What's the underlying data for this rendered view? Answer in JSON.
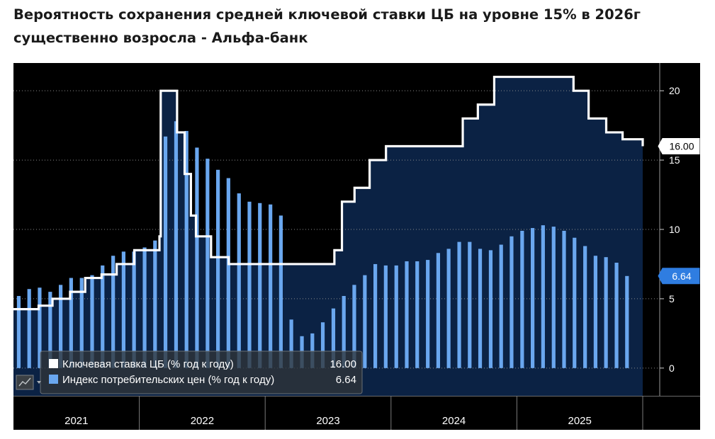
{
  "headline": "Вероятность сохранения средней ключевой ставки ЦБ на уровне 15% в 2026г существенно возросла - Альфа-банк",
  "chart_data": {
    "type": "bar+line",
    "title": "Вероятность сохранения средней ключевой ставки ЦБ на уровне 15% в 2026г существенно возросла - Альфа-банк",
    "ylim": [
      -2,
      22
    ],
    "yticks": [
      0,
      5,
      10,
      15,
      20
    ],
    "xlim": [
      2021.0,
      2026.0
    ],
    "year_labels": [
      "2021",
      "2022",
      "2023",
      "2024",
      "2025"
    ],
    "grid": true,
    "series": [
      {
        "name": "Ключевая ставка ЦБ (% год к году)",
        "kind": "step-line",
        "color": "#ffffff",
        "last_value": "16.00",
        "steps": [
          {
            "x": 2021.0,
            "y": 4.25
          },
          {
            "x": 2021.2,
            "y": 4.5
          },
          {
            "x": 2021.31,
            "y": 5.0
          },
          {
            "x": 2021.45,
            "y": 5.5
          },
          {
            "x": 2021.57,
            "y": 6.5
          },
          {
            "x": 2021.7,
            "y": 6.75
          },
          {
            "x": 2021.82,
            "y": 7.5
          },
          {
            "x": 2021.96,
            "y": 8.5
          },
          {
            "x": 2022.16,
            "y": 9.5
          },
          {
            "x": 2022.17,
            "y": 20.0
          },
          {
            "x": 2022.3,
            "y": 17.0
          },
          {
            "x": 2022.36,
            "y": 14.0
          },
          {
            "x": 2022.41,
            "y": 11.0
          },
          {
            "x": 2022.45,
            "y": 9.5
          },
          {
            "x": 2022.57,
            "y": 8.0
          },
          {
            "x": 2022.71,
            "y": 7.5
          },
          {
            "x": 2023.55,
            "y": 8.5
          },
          {
            "x": 2023.61,
            "y": 12.0
          },
          {
            "x": 2023.71,
            "y": 13.0
          },
          {
            "x": 2023.83,
            "y": 15.0
          },
          {
            "x": 2023.96,
            "y": 16.0
          },
          {
            "x": 2024.57,
            "y": 18.0
          },
          {
            "x": 2024.69,
            "y": 19.0
          },
          {
            "x": 2024.82,
            "y": 21.0
          },
          {
            "x": 2025.45,
            "y": 20.0
          },
          {
            "x": 2025.57,
            "y": 18.0
          },
          {
            "x": 2025.71,
            "y": 17.0
          },
          {
            "x": 2025.84,
            "y": 16.5
          },
          {
            "x": 2026.0,
            "y": 16.0
          }
        ]
      },
      {
        "name": "Индекс потребительских цен (% год к году)",
        "kind": "bar",
        "color": "#6aa7ef",
        "last_value": "6.64",
        "x": [
          2021.042,
          2021.125,
          2021.208,
          2021.292,
          2021.375,
          2021.458,
          2021.542,
          2021.625,
          2021.708,
          2021.792,
          2021.875,
          2021.958,
          2022.042,
          2022.125,
          2022.208,
          2022.292,
          2022.375,
          2022.458,
          2022.542,
          2022.625,
          2022.708,
          2022.792,
          2022.875,
          2022.958,
          2023.042,
          2023.125,
          2023.208,
          2023.292,
          2023.375,
          2023.458,
          2023.542,
          2023.625,
          2023.708,
          2023.792,
          2023.875,
          2023.958,
          2024.042,
          2024.125,
          2024.208,
          2024.292,
          2024.375,
          2024.458,
          2024.542,
          2024.625,
          2024.708,
          2024.792,
          2024.875,
          2024.958,
          2025.042,
          2025.125,
          2025.208,
          2025.292,
          2025.375,
          2025.458,
          2025.542,
          2025.625,
          2025.708,
          2025.792,
          2025.875
        ],
        "values": [
          5.2,
          5.7,
          5.8,
          5.5,
          6.0,
          6.5,
          6.5,
          6.7,
          7.4,
          8.1,
          8.4,
          8.4,
          8.7,
          9.2,
          16.7,
          17.8,
          17.1,
          15.9,
          15.1,
          14.3,
          13.7,
          12.6,
          12.0,
          11.9,
          11.8,
          11.0,
          3.5,
          2.3,
          2.5,
          3.3,
          4.3,
          5.2,
          6.0,
          6.7,
          7.5,
          7.4,
          7.4,
          7.7,
          7.7,
          7.8,
          8.3,
          8.6,
          9.1,
          9.1,
          8.6,
          8.5,
          8.9,
          9.5,
          9.9,
          10.1,
          10.3,
          10.2,
          9.9,
          9.4,
          8.8,
          8.1,
          8.0,
          7.6,
          6.64
        ]
      }
    ],
    "legend": {
      "position": "bottom-left",
      "entries": [
        {
          "label": "Ключевая ставка ЦБ (% год к году)",
          "value": "16.00"
        },
        {
          "label": "Индекс потребительских цен (% год к году)",
          "value": "6.64"
        }
      ]
    }
  }
}
